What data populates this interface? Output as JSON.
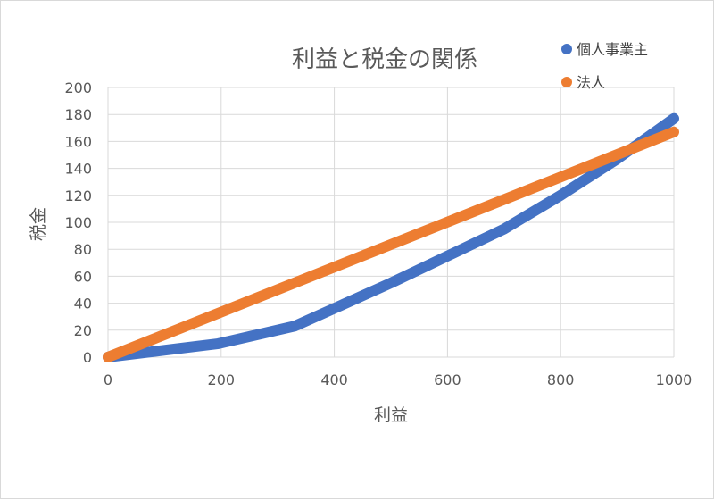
{
  "chart_data": {
    "type": "line",
    "title": "利益と税金の関係",
    "xlabel": "利益",
    "ylabel": "税金",
    "xlim": [
      0,
      1000
    ],
    "ylim": [
      0,
      200
    ],
    "x_ticks": [
      "0",
      "200",
      "400",
      "600",
      "800",
      "1000"
    ],
    "y_ticks": [
      "0",
      "20",
      "40",
      "60",
      "80",
      "100",
      "120",
      "140",
      "160",
      "180",
      "200"
    ],
    "grid": true,
    "legend_position": "top-right",
    "series": [
      {
        "name": "個人事業主",
        "color": "#4472C4",
        "points": [
          [
            0,
            0
          ],
          [
            195,
            10
          ],
          [
            330,
            23
          ],
          [
            500,
            55
          ],
          [
            700,
            95
          ],
          [
            800,
            120
          ],
          [
            900,
            147
          ],
          [
            1000,
            177
          ]
        ]
      },
      {
        "name": "法人",
        "color": "#ED7D31",
        "points": [
          [
            0,
            0
          ],
          [
            1000,
            167
          ]
        ]
      }
    ]
  }
}
